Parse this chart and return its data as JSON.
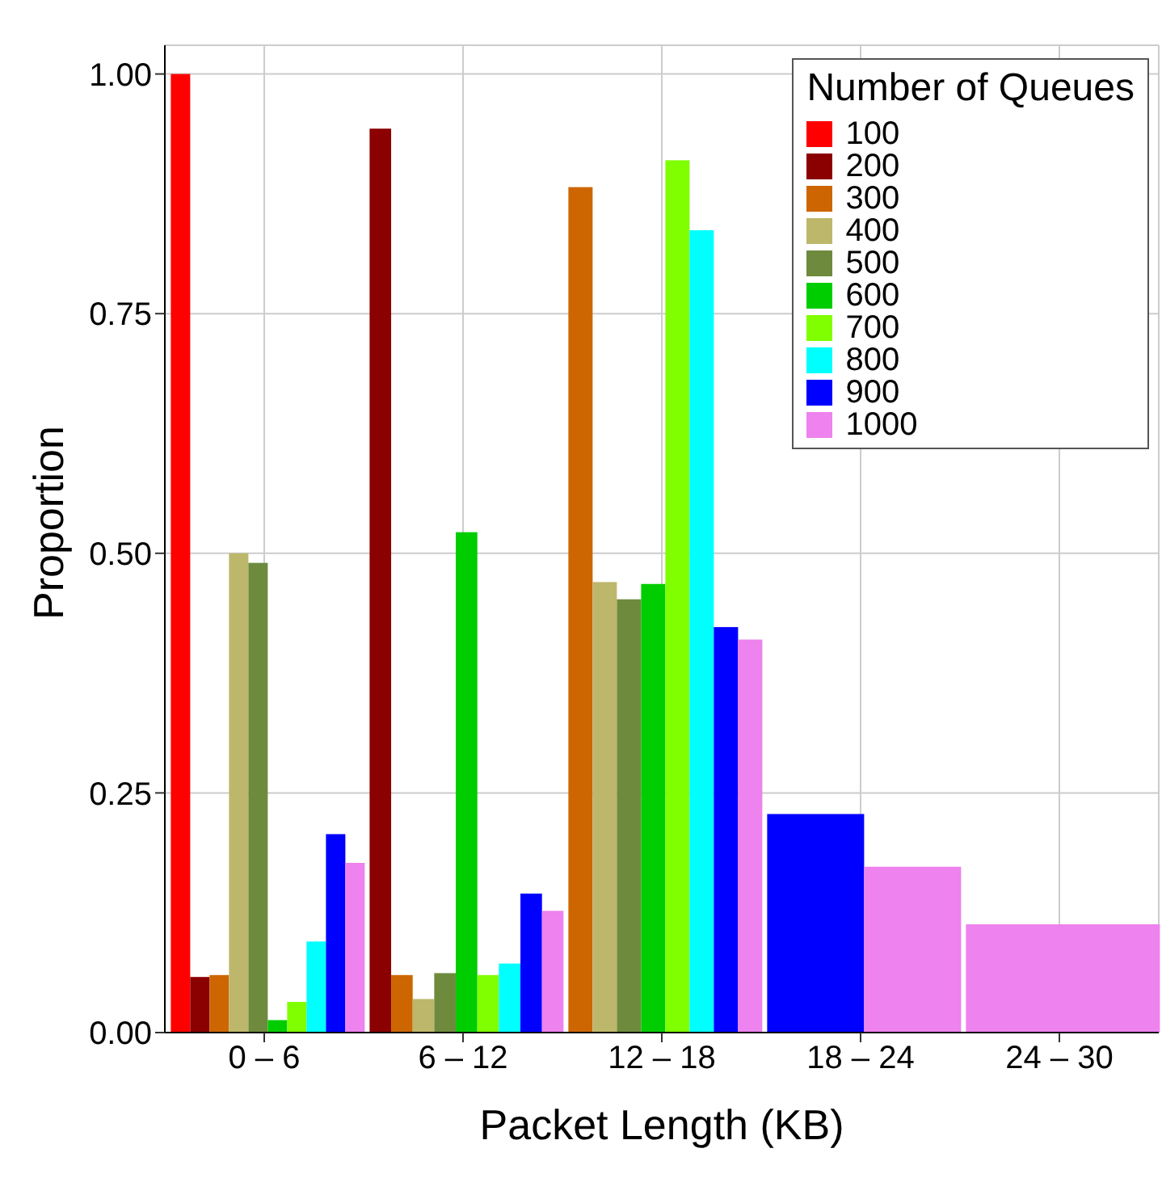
{
  "chart_data": {
    "type": "bar",
    "xlabel": "Packet Length (KB)",
    "ylabel": "Proportion",
    "legend_title": "Number of Queues",
    "legend": "top right",
    "grid": true,
    "categories": [
      "0 – 6",
      "6 – 12",
      "12 – 18",
      "18 – 24",
      "24 – 30"
    ],
    "ylim": [
      0,
      1.03
    ],
    "yticks": [
      {
        "value": 0,
        "label": "0.00"
      },
      {
        "value": 0.25,
        "label": "0.25"
      },
      {
        "value": 0.5,
        "label": "0.50"
      },
      {
        "value": 0.75,
        "label": "0.75"
      },
      {
        "value": 1,
        "label": "1.00"
      }
    ],
    "series": [
      {
        "name": "100",
        "color": "#ff0000",
        "values": [
          1.0,
          null,
          null,
          null,
          null
        ]
      },
      {
        "name": "200",
        "color": "#8b0000",
        "values": [
          0.058,
          0.943,
          null,
          null,
          null
        ]
      },
      {
        "name": "300",
        "color": "#cd6600",
        "values": [
          0.06,
          0.06,
          0.882,
          null,
          null
        ]
      },
      {
        "name": "400",
        "color": "#bdb76b",
        "values": [
          0.5,
          0.035,
          0.47,
          null,
          null
        ]
      },
      {
        "name": "500",
        "color": "#6e8b3d",
        "values": [
          0.49,
          0.062,
          0.452,
          null,
          null
        ]
      },
      {
        "name": "600",
        "color": "#00cd00",
        "values": [
          0.013,
          0.522,
          0.468,
          null,
          null
        ]
      },
      {
        "name": "700",
        "color": "#7fff00",
        "values": [
          0.032,
          0.06,
          0.91,
          null,
          null
        ]
      },
      {
        "name": "800",
        "color": "#00ffff",
        "values": [
          0.095,
          0.072,
          0.837,
          null,
          null
        ]
      },
      {
        "name": "900",
        "color": "#0000ff",
        "values": [
          0.207,
          0.145,
          0.423,
          0.228,
          null
        ]
      },
      {
        "name": "1000",
        "color": "#ee82ee",
        "values": [
          0.177,
          0.127,
          0.41,
          0.173,
          0.113
        ]
      }
    ]
  }
}
